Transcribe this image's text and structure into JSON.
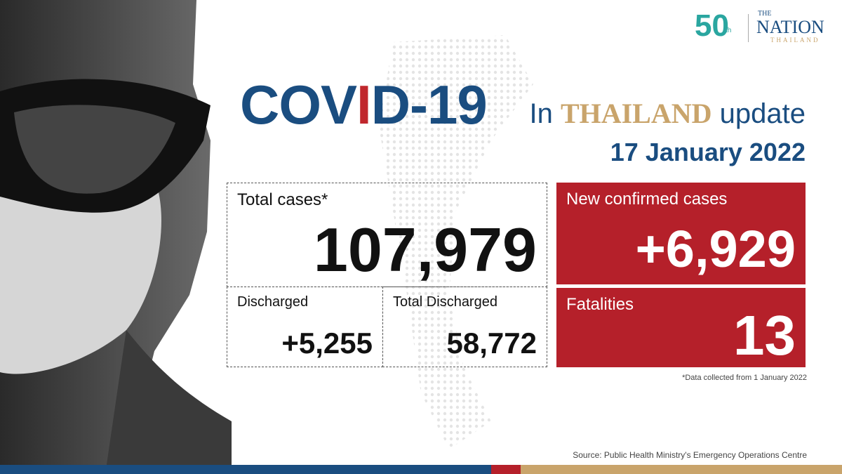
{
  "logo": {
    "anniversary": "50",
    "suffix": "th",
    "the": "THE",
    "name": "NATION",
    "region": "THAILAND"
  },
  "title": {
    "part1": "COV",
    "part2": "I",
    "part3": "D-19",
    "in": "In",
    "country": "THAILAND",
    "update": "update"
  },
  "date": "17 January 2022",
  "total_cases": {
    "label": "Total cases*",
    "value": "107,979"
  },
  "discharged": {
    "label": "Discharged",
    "value": "+5,255"
  },
  "total_discharged": {
    "label": "Total Discharged",
    "value": "58,772"
  },
  "new_cases": {
    "label": "New confirmed cases",
    "value": "+6,929"
  },
  "fatalities": {
    "label": "Fatalities",
    "value": "13"
  },
  "note": "*Data collected from 1 January 2022",
  "source": "Source: Public Health Ministry's Emergency Operations Centre"
}
